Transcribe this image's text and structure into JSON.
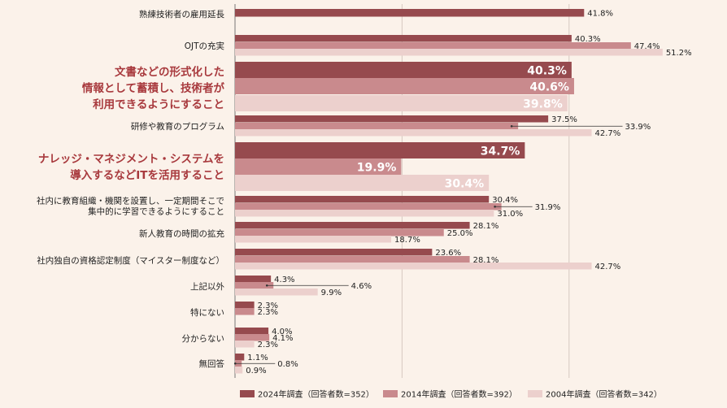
{
  "chart_data": {
    "type": "bar",
    "orientation": "horizontal",
    "grid": true,
    "xlim": [
      0,
      100
    ],
    "legend_position": "bottom",
    "colors": {
      "2024": "#964a4e",
      "2014": "#c98a8d",
      "2004": "#ecd0cd",
      "highlight_text": "#a8393d"
    },
    "series": [
      {
        "name": "2024年調査（回答者数=352）",
        "key": "2024"
      },
      {
        "name": "2014年調査（回答者数=392）",
        "key": "2014"
      },
      {
        "name": "2004年調査（回答者数=342）",
        "key": "2004"
      }
    ],
    "categories": [
      {
        "label": [
          "熟練技術者の雇用延長"
        ],
        "highlight": false,
        "values": [
          41.8,
          null,
          null
        ],
        "labels": [
          "41.8%",
          null,
          null
        ]
      },
      {
        "label": [
          "OJTの充実"
        ],
        "highlight": false,
        "values": [
          40.3,
          47.4,
          51.2
        ],
        "labels": [
          "40.3%",
          "47.4%",
          "51.2%"
        ]
      },
      {
        "label": [
          "文書などの形式化した",
          "情報として蓄積し、技術者が",
          "利用できるようにすること"
        ],
        "highlight": true,
        "values": [
          40.3,
          40.6,
          39.8
        ],
        "labels": [
          "40.3%",
          "40.6%",
          "39.8%"
        ]
      },
      {
        "label": [
          "研修や教育のプログラム"
        ],
        "highlight": false,
        "values": [
          37.5,
          33.9,
          42.7
        ],
        "labels": [
          "37.5%",
          "33.9%",
          "42.7%"
        ]
      },
      {
        "label": [
          "ナレッジ・マネジメント・システムを",
          "導入するなどITを活用すること"
        ],
        "highlight": true,
        "values": [
          34.7,
          19.9,
          30.4
        ],
        "labels": [
          "34.7%",
          "19.9%",
          "30.4%"
        ]
      },
      {
        "label": [
          "社内に教育組織・機関を設置し、一定期間そこで",
          "集中的に学習できるようにすること"
        ],
        "highlight": false,
        "values": [
          30.4,
          31.9,
          31.0
        ],
        "labels": [
          "30.4%",
          "31.9%",
          "31.0%"
        ]
      },
      {
        "label": [
          "新人教育の時間の拡充"
        ],
        "highlight": false,
        "values": [
          28.1,
          25.0,
          18.7
        ],
        "labels": [
          "28.1%",
          "25.0%",
          "18.7%"
        ]
      },
      {
        "label": [
          "社内独自の資格認定制度（マイスター制度など）"
        ],
        "highlight": false,
        "values": [
          23.6,
          28.1,
          42.7
        ],
        "labels": [
          "23.6%",
          "28.1%",
          "42.7%"
        ]
      },
      {
        "label": [
          "上記以外"
        ],
        "highlight": false,
        "values": [
          4.3,
          4.6,
          9.9
        ],
        "labels": [
          "4.3%",
          "4.6%",
          "9.9%"
        ]
      },
      {
        "label": [
          "特にない"
        ],
        "highlight": false,
        "values": [
          2.3,
          2.3,
          null
        ],
        "labels": [
          "2.3%",
          "2.3%",
          null
        ]
      },
      {
        "label": [
          "分からない"
        ],
        "highlight": false,
        "values": [
          4.0,
          4.1,
          2.3
        ],
        "labels": [
          "4.0%",
          "4.1%",
          "2.3%"
        ]
      },
      {
        "label": [
          "無回答"
        ],
        "highlight": false,
        "values": [
          1.1,
          0.8,
          0.9
        ],
        "labels": [
          "1.1%",
          "0.8%",
          "0.9%"
        ]
      }
    ]
  }
}
